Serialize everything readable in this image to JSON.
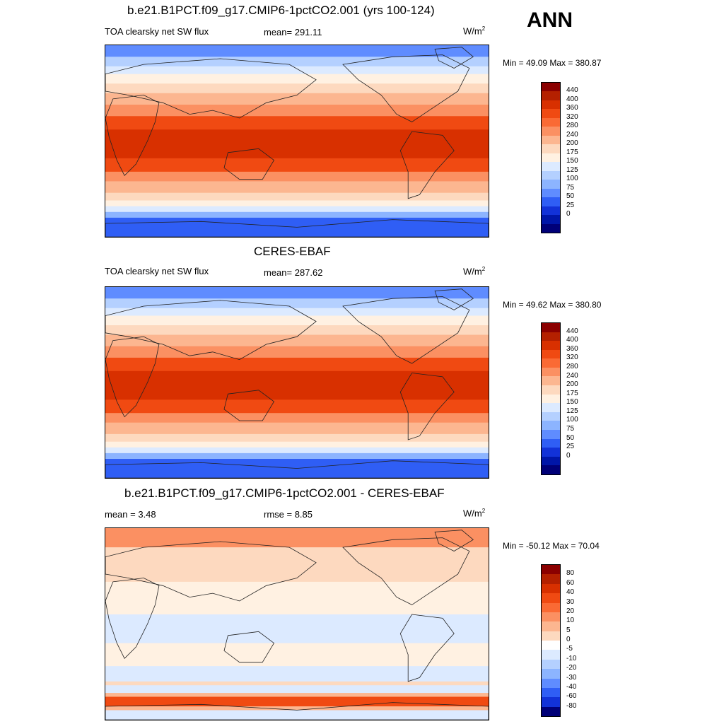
{
  "season": "ANN",
  "panels": [
    {
      "title": "b.e21.B1PCT.f09_g17.CMIP6-1pctCO2.001 (yrs 100-124)",
      "left_label": "TOA clearsky net SW flux",
      "mid_label": "mean= 291.11",
      "units": "W/m",
      "units_sup": "2",
      "minmax": "Min =  49.09 Max = 380.87",
      "colorbar": {
        "labels": [
          "440",
          "400",
          "360",
          "320",
          "280",
          "240",
          "200",
          "175",
          "150",
          "125",
          "100",
          "75",
          "50",
          "25",
          "0"
        ],
        "colors": [
          "#8b0000",
          "#b42000",
          "#d83000",
          "#f04a12",
          "#fa6a34",
          "#fb9062",
          "#fcb690",
          "#fdd9bf",
          "#fff1e2",
          "#dceaff",
          "#b4d0ff",
          "#8cb4ff",
          "#5f8cff",
          "#2f5ef5",
          "#1232d8",
          "#0016a8",
          "#000078"
        ]
      },
      "map_type": "abs"
    },
    {
      "title": "CERES-EBAF",
      "left_label": "TOA clearsky net SW flux",
      "mid_label": "mean= 287.62",
      "units": "W/m",
      "units_sup": "2",
      "minmax": "Min =  49.62 Max = 380.80",
      "colorbar": {
        "labels": [
          "440",
          "400",
          "360",
          "320",
          "280",
          "240",
          "200",
          "175",
          "150",
          "125",
          "100",
          "75",
          "50",
          "25",
          "0"
        ],
        "colors": [
          "#8b0000",
          "#b42000",
          "#d83000",
          "#f04a12",
          "#fa6a34",
          "#fb9062",
          "#fcb690",
          "#fdd9bf",
          "#fff1e2",
          "#dceaff",
          "#b4d0ff",
          "#8cb4ff",
          "#5f8cff",
          "#2f5ef5",
          "#1232d8",
          "#0016a8",
          "#000078"
        ]
      },
      "map_type": "abs"
    },
    {
      "title": "b.e21.B1PCT.f09_g17.CMIP6-1pctCO2.001 - CERES-EBAF",
      "left_label": "mean =   3.48",
      "mid_label": "rmse =   8.85",
      "units": "W/m",
      "units_sup": "2",
      "minmax": "Min = -50.12 Max =  70.04",
      "colorbar": {
        "labels": [
          "80",
          "60",
          "40",
          "30",
          "20",
          "10",
          "5",
          "0",
          "-5",
          "-10",
          "-20",
          "-30",
          "-40",
          "-60",
          "-80"
        ],
        "colors": [
          "#8b0000",
          "#b42000",
          "#d83000",
          "#f04a12",
          "#fa6a34",
          "#fb9062",
          "#fcb690",
          "#fdd9bf",
          "#ffffff",
          "#dceaff",
          "#b4d0ff",
          "#8cb4ff",
          "#5f8cff",
          "#2f5ef5",
          "#1232d8",
          "#000078"
        ]
      },
      "map_type": "diff"
    }
  ]
}
